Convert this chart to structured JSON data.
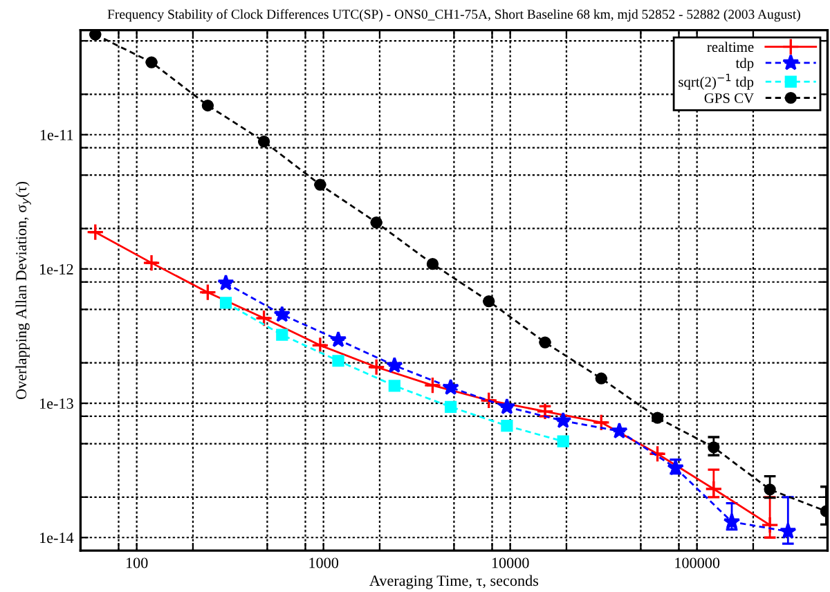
{
  "chart_data": {
    "type": "line",
    "title": "Frequency Stability of Clock Differences UTC(SP) - ONS0_CH1-75A, Short Baseline 68 km, mjd 52852 - 52882 (2003 August)",
    "xlabel": "Averaging Time, τ, seconds",
    "ylabel": "Overlapping Allan Deviation, σ$_{y}$(τ)",
    "log": "xy",
    "grid": true,
    "legend": "top right",
    "xlim": [
      50,
      500000
    ],
    "ylim": [
      8e-15,
      6e-11
    ],
    "xticks": [
      {
        "value": 80,
        "label": null
      },
      100,
      {
        "value": 200,
        "label": null
      },
      {
        "value": 500,
        "label": null
      },
      {
        "value": 800,
        "label": null
      },
      1000,
      {
        "value": 2000,
        "label": null
      },
      {
        "value": 5000,
        "label": null
      },
      {
        "value": 8000,
        "label": null
      },
      10000,
      {
        "value": 20000,
        "label": null
      },
      {
        "value": 50000,
        "label": null
      },
      {
        "value": 80000,
        "label": null
      },
      100000,
      {
        "value": 200000,
        "label": null
      }
    ],
    "yticks": [
      {
        "value": 1e-14,
        "label": "1e-14"
      },
      {
        "value": 2e-14,
        "label": null
      },
      {
        "value": 5e-14,
        "label": null
      },
      {
        "value": 8e-14,
        "label": null
      },
      {
        "value": 1e-13,
        "label": "1e-13"
      },
      {
        "value": 2e-13,
        "label": null
      },
      {
        "value": 5e-13,
        "label": null
      },
      {
        "value": 8e-13,
        "label": null
      },
      {
        "value": 1e-12,
        "label": "1e-12"
      },
      {
        "value": 2e-12,
        "label": null
      },
      {
        "value": 5e-12,
        "label": null
      },
      {
        "value": 8e-12,
        "label": null
      },
      {
        "value": 1e-11,
        "label": "1e-11"
      },
      {
        "value": 2e-11,
        "label": null
      },
      {
        "value": 5e-11,
        "label": null
      }
    ],
    "series": [
      {
        "name": "realtime",
        "color": "#ff0000",
        "marker": "cross",
        "line_style": "solid",
        "x": [
          60,
          120,
          240,
          480,
          960,
          1920,
          3840,
          7680,
          15360,
          30720,
          61440,
          122880,
          245760
        ],
        "values": [
          1.88e-12,
          1.11e-12,
          6.7e-13,
          4.3e-13,
          2.7e-13,
          1.86e-13,
          1.36e-13,
          1.05e-13,
          8.7e-14,
          7.2e-14,
          4.2e-14,
          2.3e-14,
          1.24e-14
        ],
        "errors": [
          null,
          null,
          null,
          null,
          null,
          null,
          null,
          null,
          [
            8e-14,
            9.5e-14
          ],
          null,
          null,
          [
            2e-14,
            3.2e-14
          ],
          [
            1e-14,
            2e-14
          ]
        ]
      },
      {
        "name": "tdp",
        "color": "#0000ff",
        "marker": "star",
        "line_style": "dashed",
        "x": [
          300,
          600,
          1200,
          2400,
          4800,
          9600,
          19200,
          38400,
          76800,
          153600,
          307200
        ],
        "values": [
          7.85e-13,
          4.57e-13,
          2.97e-13,
          1.91e-13,
          1.31e-13,
          9.4e-14,
          7.4e-14,
          6.2e-14,
          3.3e-14,
          1.31e-14,
          1.11e-14
        ],
        "errors": [
          null,
          null,
          null,
          null,
          null,
          null,
          null,
          null,
          [
            3e-14,
            3.8e-14
          ],
          [
            1.15e-14,
            1.8e-14
          ],
          [
            9e-15,
            2e-14
          ]
        ]
      },
      {
        "name": "sqrt(2)$^{−1}$ tdp",
        "color": "#00ffff",
        "marker": "square",
        "line_style": "dashed",
        "x": [
          300,
          600,
          1200,
          2400,
          4800,
          9600,
          19200
        ],
        "values": [
          5.6e-13,
          3.23e-13,
          2.07e-13,
          1.35e-13,
          9.4e-14,
          6.8e-14,
          5.2e-14
        ]
      },
      {
        "name": "GPS CV",
        "color": "#000000",
        "marker": "circle",
        "line_style": "dashed",
        "x": [
          60,
          120,
          240,
          480,
          960,
          1920,
          3840,
          7680,
          15360,
          30720,
          61440,
          122880,
          245760,
          491520
        ],
        "values": [
          5.57e-11,
          3.46e-11,
          1.65e-11,
          8.9e-12,
          4.24e-12,
          2.22e-12,
          1.09e-12,
          5.75e-13,
          2.84e-13,
          1.53e-13,
          7.8e-14,
          4.7e-14,
          2.28e-14,
          1.57e-14
        ],
        "errors": [
          null,
          null,
          null,
          null,
          null,
          null,
          null,
          null,
          null,
          null,
          [
            7.4e-14,
            8.2e-14
          ],
          [
            4.1e-14,
            5.6e-14
          ],
          [
            1.98e-14,
            2.86e-14
          ],
          [
            1.25e-14,
            2.39e-14
          ]
        ]
      }
    ]
  }
}
